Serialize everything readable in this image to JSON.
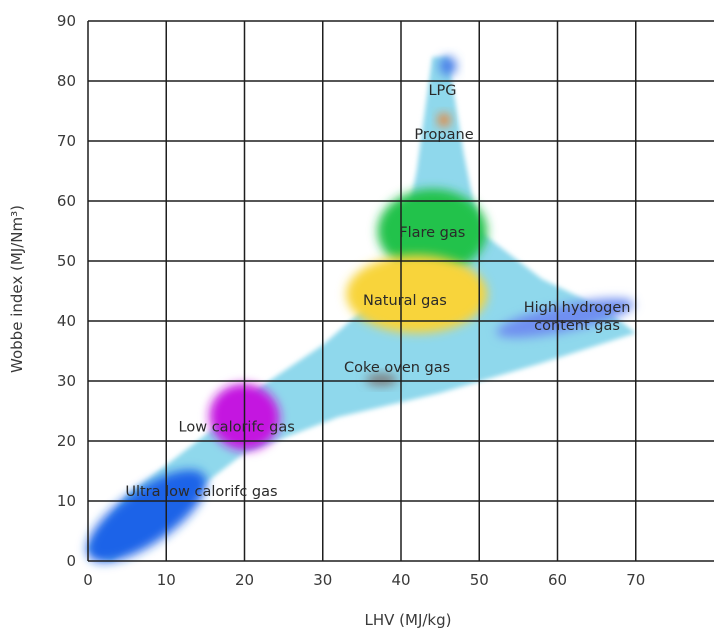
{
  "chart_data": {
    "type": "scatter",
    "title": "",
    "xlabel": "LHV (MJ/kg)",
    "ylabel": "Wobbe index (MJ/Nm³)",
    "xlim": [
      0,
      80
    ],
    "ylim": [
      0,
      90
    ],
    "xticks": [
      0,
      10,
      20,
      30,
      40,
      50,
      60,
      70
    ],
    "yticks": [
      0,
      10,
      20,
      30,
      40,
      50,
      60,
      70,
      80,
      90
    ],
    "grid": true,
    "envelope": {
      "color": "#8fd8ec",
      "points": [
        [
          0,
          2
        ],
        [
          5,
          11
        ],
        [
          15,
          21
        ],
        [
          22,
          29
        ],
        [
          30,
          36
        ],
        [
          37,
          44
        ],
        [
          40,
          52
        ],
        [
          42,
          65
        ],
        [
          44,
          84
        ],
        [
          46,
          84
        ],
        [
          48,
          68
        ],
        [
          50,
          55
        ],
        [
          58,
          47
        ],
        [
          66,
          42
        ],
        [
          70,
          38
        ],
        [
          58,
          33
        ],
        [
          45,
          28
        ],
        [
          32,
          24
        ],
        [
          20,
          18
        ],
        [
          10,
          8
        ],
        [
          3,
          0
        ]
      ]
    },
    "regions": [
      {
        "name": "LPG",
        "label": "LPG",
        "color": "#4a7fe8",
        "center": [
          46,
          82.5
        ],
        "rx": 1.1,
        "ry": 1.6,
        "angle": 0,
        "label_pos": [
          45.3,
          77.7
        ]
      },
      {
        "name": "Propane",
        "label": "Propane",
        "color": "#f07f2a",
        "center": [
          45.5,
          73.5
        ],
        "rx": 0.8,
        "ry": 1.1,
        "angle": 0,
        "label_pos": [
          45.5,
          70.3
        ]
      },
      {
        "name": "Flare gas",
        "label": "Flare gas",
        "color": "#22c24c",
        "center": [
          44,
          55
        ],
        "rx": 7,
        "ry": 7,
        "angle": 0,
        "label_pos": [
          44,
          54
        ]
      },
      {
        "name": "Natural gas",
        "label": "Natural gas",
        "color": "#f8d43a",
        "center": [
          42,
          44.5
        ],
        "rx": 9,
        "ry": 6.5,
        "angle": 0,
        "label_pos": [
          40.5,
          42.7
        ]
      },
      {
        "name": "High hydrogen content gas",
        "label": [
          "High hydrogen",
          "content gas"
        ],
        "color": "#6f8ff0",
        "center": [
          61,
          40.5
        ],
        "rx": 9,
        "ry": 2.2,
        "angle": 12,
        "label_pos": [
          62.5,
          41.5
        ]
      },
      {
        "name": "Coke oven gas",
        "label": "Coke oven gas",
        "color": "#7d7d7d",
        "center": [
          37.5,
          30.2
        ],
        "rx": 2,
        "ry": 1,
        "angle": 0,
        "label_pos": [
          39.5,
          31.5
        ]
      },
      {
        "name": "Low calorifc gas",
        "label": "Low calorifc gas",
        "color": "#c415e0",
        "center": [
          20,
          24
        ],
        "rx": 4.5,
        "ry": 5.5,
        "angle": -15,
        "label_pos": [
          19,
          21.6
        ]
      },
      {
        "name": "Ultra low calorifc gas",
        "label": "Ultra low calorifc gas",
        "color": "#1a63e8",
        "center": [
          7.5,
          7.5
        ],
        "rx": 9,
        "ry": 4.5,
        "angle": 35,
        "label_pos": [
          14.5,
          10.8
        ]
      }
    ]
  }
}
